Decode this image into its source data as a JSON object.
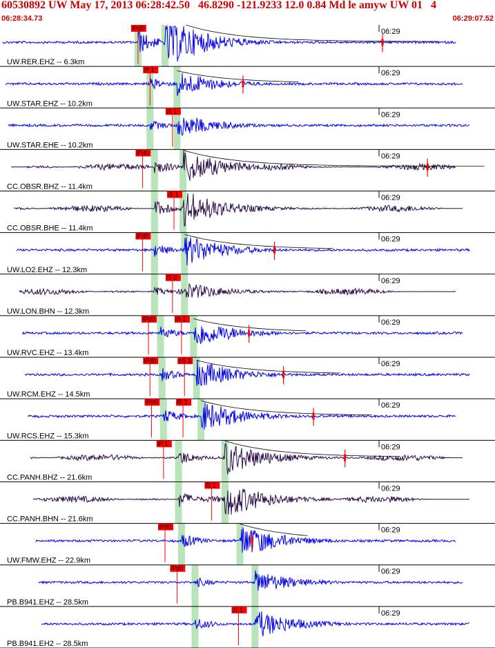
{
  "header": {
    "title": "60530892 UW May 17, 2013 06:28:42.50   46.8290 -121.9233 12.0 0.84 Md le amyw UW 01   4",
    "start_time": "06:28:34.73",
    "end_time": "06:29:07.52"
  },
  "colors": {
    "header_text": "#cc0000",
    "trace_blue": "#0000ee",
    "trace_dark": "#2a0a4a",
    "pick_red": "#ff0000",
    "window_green": "#b9e3b9",
    "separator": "#000000"
  },
  "chart_data": {
    "type": "seismogram",
    "time_axis": {
      "start": "06:28:34.73",
      "end": "06:29:07.52",
      "tick_label": "06:29"
    },
    "traces": [
      {
        "label": "UW.RER.EHZ -- 6.3km",
        "color": "blue",
        "p": 9.2,
        "s": 11.0,
        "amp": 40,
        "picks": [
          {
            "t": 9.2,
            "label": "iPd0"
          }
        ],
        "coda_marker": 25.5
      },
      {
        "label": "UW.STAR.EHZ -- 10.2km",
        "color": "blue",
        "p": 10.0,
        "s": 11.8,
        "amp": 20,
        "picks": [
          {
            "t": 10.0,
            "label": "iP 1"
          }
        ],
        "coda_marker": 16.2
      },
      {
        "label": "UW.STAR.EHE -- 10.2km",
        "color": "blue",
        "p": 10.0,
        "s": 11.8,
        "amp": 18,
        "picks": [
          {
            "t": 11.5,
            "label": "iS 1"
          }
        ]
      },
      {
        "label": "CC.OBSR.BHZ -- 11.4km",
        "color": "dark",
        "p": 10.3,
        "s": 12.2,
        "amp": 26,
        "picks": [
          {
            "t": 9.5,
            "label": "iPd0"
          }
        ],
        "coda_marker": 28.5
      },
      {
        "label": "CC.OBSR.BHE -- 11.4km",
        "color": "dark",
        "p": 10.3,
        "s": 12.2,
        "amp": 28,
        "picks": [
          {
            "t": 11.6,
            "label": "iS 1"
          }
        ]
      },
      {
        "label": "UW.LO2.EHZ -- 12.3km",
        "color": "blue",
        "p": 10.3,
        "s": 12.3,
        "amp": 24,
        "picks": [
          {
            "t": 9.5,
            "label": "iPd0"
          }
        ],
        "coda_marker": 18.3
      },
      {
        "label": "UW.LON.BHN -- 12.3km",
        "color": "dark",
        "p": 10.3,
        "s": 12.3,
        "amp": 14,
        "picks": [
          {
            "t": 11.5,
            "label": "iS 0"
          }
        ]
      },
      {
        "label": "UW.RVC.EHZ -- 13.4km",
        "color": "blue",
        "p": 10.7,
        "s": 12.9,
        "amp": 22,
        "picks": [
          {
            "t": 9.9,
            "label": "iPd0"
          },
          {
            "t": 12.1,
            "label": "iS 1"
          }
        ],
        "coda_marker": 16.6
      },
      {
        "label": "UW.RCM.EHZ -- 14.5km",
        "color": "blue",
        "p": 10.8,
        "s": 13.1,
        "amp": 22,
        "picks": [
          {
            "t": 10.0,
            "label": "iPd0"
          },
          {
            "t": 12.3,
            "label": "eS 3"
          }
        ],
        "coda_marker": 18.9
      },
      {
        "label": "UW.RCS.EHZ -- 15.3km",
        "color": "blue",
        "p": 10.9,
        "s": 13.4,
        "amp": 24,
        "picks": [
          {
            "t": 10.1,
            "label": "iPc0"
          },
          {
            "t": 12.2,
            "label": "iS 1"
          }
        ],
        "coda_marker": 20.9
      },
      {
        "label": "CC.PANH.BHZ -- 21.6km",
        "color": "dark",
        "p": 11.9,
        "s": 15.0,
        "amp": 26,
        "picks": [
          {
            "t": 10.9,
            "label": "iP 1"
          }
        ],
        "coda_marker": 23.0
      },
      {
        "label": "CC.PANH.BHN -- 21.6km",
        "color": "dark",
        "p": 11.9,
        "s": 15.0,
        "amp": 28,
        "picks": [
          {
            "t": 14.1,
            "label": "iS 1"
          }
        ]
      },
      {
        "label": "UW.FMW.EHZ -- 22.9km",
        "color": "blue",
        "p": 12.1,
        "s": 16.0,
        "amp": 26,
        "picks": [
          {
            "t": 11.0,
            "label": "iPd0"
          }
        ],
        "coda_marker": 16.8
      },
      {
        "label": "PB.B941.EHZ -- 28.5km",
        "color": "blue",
        "p": 13.0,
        "s": 17.0,
        "amp": 18,
        "picks": [
          {
            "t": 11.8,
            "label": "iPd0"
          }
        ]
      },
      {
        "label": "PB.B941.EH2 -- 28.5km",
        "color": "blue",
        "p": 13.0,
        "s": 17.0,
        "amp": 22,
        "picks": [
          {
            "t": 15.9,
            "label": "iS 1"
          }
        ]
      }
    ]
  }
}
